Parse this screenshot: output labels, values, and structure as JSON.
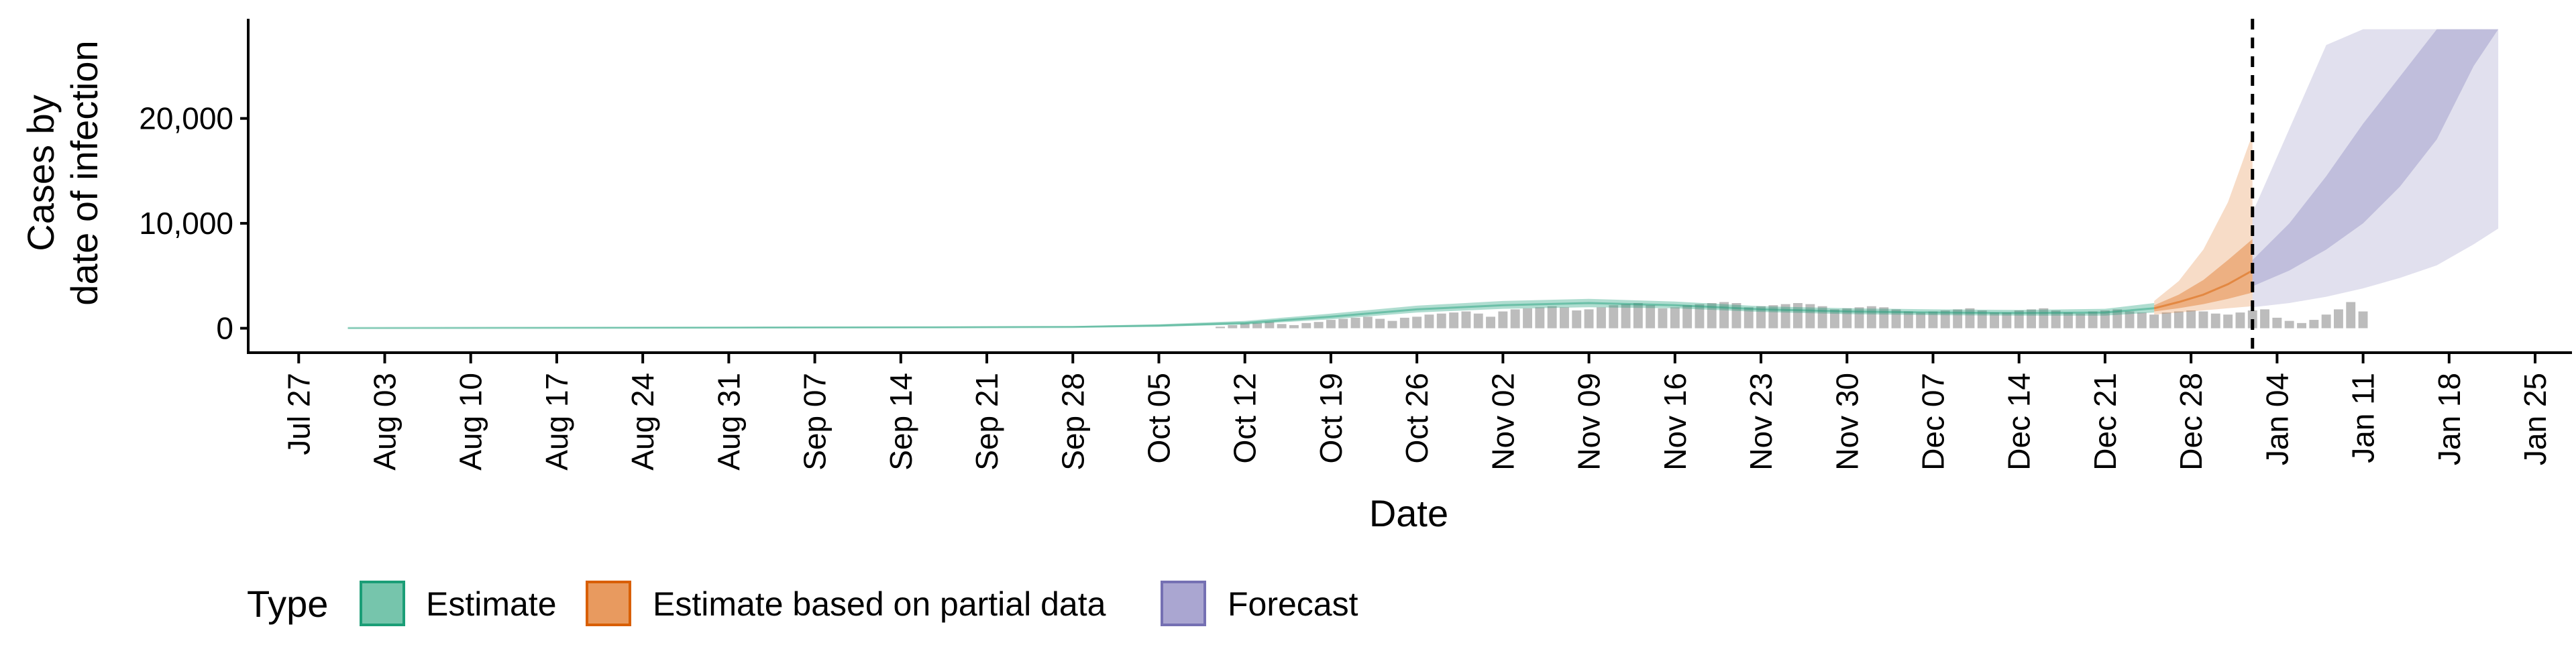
{
  "chart_data": {
    "type": "area",
    "xlabel": "Date",
    "ylabel_lines": [
      "Cases by",
      "date of infection"
    ],
    "ylim": [
      -2200,
      29500
    ],
    "xlim": [
      "2020-07-23",
      "2021-01-28"
    ],
    "x_tick_labels": [
      "Jul 27",
      "Aug 03",
      "Aug 10",
      "Aug 17",
      "Aug 24",
      "Aug 31",
      "Sep 07",
      "Sep 14",
      "Sep 21",
      "Sep 28",
      "Oct 05",
      "Oct 12",
      "Oct 19",
      "Oct 26",
      "Nov 02",
      "Nov 09",
      "Nov 16",
      "Nov 23",
      "Nov 30",
      "Dec 07",
      "Dec 14",
      "Dec 21",
      "Dec 28",
      "Jan 04",
      "Jan 11",
      "Jan 18",
      "Jan 25"
    ],
    "x_tick_dates": [
      "2020-07-27",
      "2020-08-03",
      "2020-08-10",
      "2020-08-17",
      "2020-08-24",
      "2020-08-31",
      "2020-09-07",
      "2020-09-14",
      "2020-09-21",
      "2020-09-28",
      "2020-10-05",
      "2020-10-12",
      "2020-10-19",
      "2020-10-26",
      "2020-11-02",
      "2020-11-09",
      "2020-11-16",
      "2020-11-23",
      "2020-11-30",
      "2020-12-07",
      "2020-12-14",
      "2020-12-21",
      "2020-12-28",
      "2021-01-04",
      "2021-01-11",
      "2021-01-18",
      "2021-01-25"
    ],
    "y_ticks": [
      0,
      10000,
      20000
    ],
    "y_tick_labels": [
      "0",
      "10,000",
      "20,000"
    ],
    "forecast_date": "2021-01-02",
    "reported_cases": {
      "start": "2020-10-10",
      "color": "#b0b0b0",
      "values": [
        150,
        300,
        450,
        500,
        600,
        400,
        300,
        500,
        600,
        800,
        900,
        1000,
        1100,
        900,
        700,
        1000,
        1100,
        1300,
        1400,
        1500,
        1600,
        1400,
        1100,
        1600,
        1800,
        1900,
        2000,
        2100,
        2000,
        1700,
        1800,
        2000,
        2200,
        2300,
        2400,
        2200,
        1900,
        2000,
        2200,
        2300,
        2400,
        2500,
        2400,
        2000,
        2100,
        2200,
        2300,
        2400,
        2300,
        2100,
        1800,
        1900,
        2000,
        2100,
        2000,
        1800,
        1600,
        1500,
        1600,
        1700,
        1800,
        1900,
        1700,
        1500,
        1500,
        1700,
        1800,
        1900,
        1700,
        1500,
        1400,
        1600,
        1700,
        1800,
        1600,
        1500,
        1300,
        1500,
        1600,
        1700,
        1600,
        1400,
        1300,
        1500,
        1700,
        1800,
        1000,
        700,
        500,
        800,
        1300,
        1800,
        2500,
        1600
      ]
    },
    "series": [
      {
        "name": "Estimate",
        "color": "#1b9e77",
        "start": "2020-07-31",
        "end": "2020-12-25",
        "curve_dates": [
          "2020-07-31",
          "2020-08-15",
          "2020-09-01",
          "2020-09-15",
          "2020-09-28",
          "2020-10-05",
          "2020-10-12",
          "2020-10-19",
          "2020-10-26",
          "2020-11-02",
          "2020-11-09",
          "2020-11-16",
          "2020-11-23",
          "2020-11-30",
          "2020-12-07",
          "2020-12-14",
          "2020-12-21",
          "2020-12-25"
        ],
        "median": [
          20,
          40,
          60,
          80,
          120,
          250,
          500,
          1100,
          1800,
          2200,
          2400,
          2200,
          1800,
          1600,
          1500,
          1450,
          1500,
          1900
        ],
        "low": [
          0,
          10,
          20,
          40,
          80,
          150,
          350,
          850,
          1500,
          1850,
          2000,
          1900,
          1550,
          1350,
          1250,
          1200,
          1200,
          1500
        ],
        "high": [
          40,
          80,
          120,
          150,
          200,
          380,
          700,
          1400,
          2150,
          2600,
          2800,
          2550,
          2100,
          1900,
          1800,
          1750,
          1850,
          2400
        ]
      },
      {
        "name": "Estimate based on partial data",
        "color": "#d95f02",
        "curve_dates": [
          "2020-12-25",
          "2020-12-27",
          "2020-12-29",
          "2020-12-31",
          "2021-01-02"
        ],
        "median": [
          1900,
          2500,
          3200,
          4200,
          5500
        ],
        "bands": [
          {
            "low": [
              1600,
              1900,
              2300,
              2800,
              3400
            ],
            "high": [
              2200,
              3200,
              4600,
              6500,
              8500
            ]
          },
          {
            "low": [
              1300,
              1500,
              1700,
              1900,
              2100
            ],
            "high": [
              2600,
              4500,
              7500,
              12000,
              18500
            ]
          }
        ]
      },
      {
        "name": "Forecast",
        "color": "#7570b3",
        "curve_dates": [
          "2021-01-02",
          "2021-01-05",
          "2021-01-08",
          "2021-01-11",
          "2021-01-14",
          "2021-01-17",
          "2021-01-20",
          "2021-01-22"
        ],
        "bands": [
          {
            "low": [
              4000,
              5500,
              7500,
              10000,
              13500,
              18000,
              25000,
              28500
            ],
            "high": [
              6500,
              10000,
              14500,
              19500,
              24000,
              28500,
              28500,
              28500
            ]
          },
          {
            "low": [
              2000,
              2400,
              3000,
              3800,
              4800,
              6000,
              8000,
              9500
            ],
            "high": [
              11000,
              19000,
              27000,
              28500,
              28500,
              28500,
              28500,
              28500
            ]
          }
        ]
      }
    ],
    "legend": {
      "title": "Type",
      "position": "bottom",
      "items": [
        {
          "label": "Estimate",
          "color": "#1b9e77",
          "fill": "#76c5ac"
        },
        {
          "label": "Estimate based on partial data",
          "color": "#d95f02",
          "fill": "#e89a5f"
        },
        {
          "label": "Forecast",
          "color": "#7570b3",
          "fill": "#aaa6d1"
        }
      ]
    }
  }
}
